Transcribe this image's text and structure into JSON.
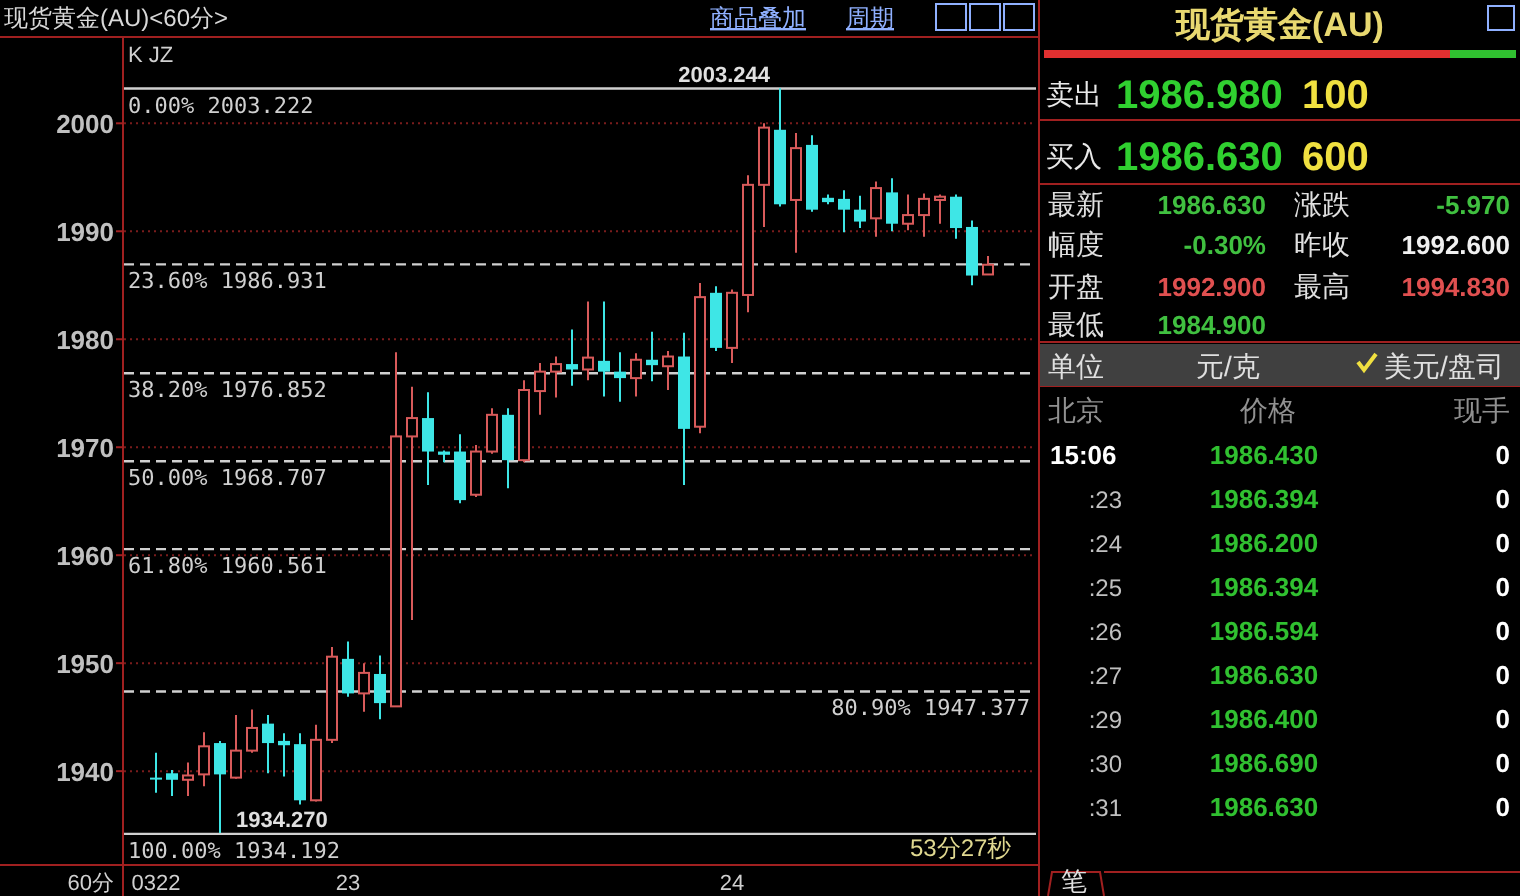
{
  "chart_data": [
    {
      "type": "candlestick",
      "title": "现货黄金(AU)<60分>",
      "xlabel": "60分",
      "categories": [
        "0322",
        null,
        null,
        null,
        null,
        null,
        null,
        null,
        null,
        null,
        null,
        null,
        "23",
        null,
        null,
        null,
        null,
        null,
        null,
        null,
        null,
        null,
        null,
        null,
        null,
        null,
        null,
        null,
        null,
        null,
        null,
        null,
        null,
        null,
        null,
        null,
        "24",
        null,
        null,
        null,
        null,
        null,
        null,
        null,
        null,
        null,
        null,
        null,
        null,
        null,
        null,
        null,
        null
      ],
      "ohlc": [
        [
          1939.4,
          1941.7,
          1938.0,
          1939.3
        ],
        [
          1939.8,
          1940.1,
          1937.7,
          1939.2
        ],
        [
          1939.2,
          1940.8,
          1937.7,
          1939.6
        ],
        [
          1939.7,
          1943.6,
          1938.6,
          1942.3
        ],
        [
          1942.6,
          1942.8,
          1934.27,
          1939.7
        ],
        [
          1939.4,
          1945.2,
          1939.3,
          1941.9
        ],
        [
          1941.9,
          1945.7,
          1941.7,
          1944.0
        ],
        [
          1944.4,
          1945.2,
          1939.8,
          1942.6
        ],
        [
          1942.8,
          1943.5,
          1939.5,
          1942.4
        ],
        [
          1942.5,
          1943.5,
          1936.9,
          1937.3
        ],
        [
          1937.3,
          1944.3,
          1937.2,
          1942.9
        ],
        [
          1942.9,
          1951.5,
          1942.6,
          1950.6
        ],
        [
          1950.4,
          1952.0,
          1946.9,
          1947.2
        ],
        [
          1947.2,
          1950.0,
          1945.5,
          1949.1
        ],
        [
          1949.0,
          1950.7,
          1944.8,
          1946.3
        ],
        [
          1946.0,
          1978.8,
          1946.0,
          1971.0
        ],
        [
          1971.0,
          1975.6,
          1954.0,
          1972.7
        ],
        [
          1972.7,
          1975.1,
          1966.5,
          1969.6
        ],
        [
          1969.6,
          1969.7,
          1968.6,
          1969.3
        ],
        [
          1969.6,
          1971.2,
          1964.8,
          1965.1
        ],
        [
          1965.6,
          1970.2,
          1965.4,
          1969.6
        ],
        [
          1969.6,
          1973.6,
          1969.4,
          1973.0
        ],
        [
          1973.0,
          1973.6,
          1966.2,
          1968.8
        ],
        [
          1968.8,
          1976.2,
          1968.6,
          1975.3
        ],
        [
          1975.2,
          1977.8,
          1973.0,
          1977.0
        ],
        [
          1977.0,
          1978.4,
          1974.6,
          1977.7
        ],
        [
          1977.7,
          1980.9,
          1975.7,
          1977.2
        ],
        [
          1977.2,
          1983.5,
          1976.2,
          1978.3
        ],
        [
          1978.0,
          1983.5,
          1974.7,
          1977.0
        ],
        [
          1977.0,
          1978.8,
          1974.2,
          1976.4
        ],
        [
          1976.4,
          1978.7,
          1974.7,
          1978.1
        ],
        [
          1978.1,
          1980.7,
          1976.1,
          1977.6
        ],
        [
          1977.5,
          1978.9,
          1975.3,
          1978.4
        ],
        [
          1978.4,
          1980.6,
          1966.5,
          1971.7
        ],
        [
          1971.9,
          1985.2,
          1971.3,
          1983.9
        ],
        [
          1984.3,
          1984.9,
          1978.9,
          1979.2
        ],
        [
          1979.2,
          1984.6,
          1977.8,
          1984.3
        ],
        [
          1984.1,
          1995.2,
          1982.5,
          1994.3
        ],
        [
          1994.3,
          2000.0,
          1990.4,
          1999.6
        ],
        [
          1999.4,
          2003.244,
          1992.3,
          1992.5
        ],
        [
          1992.9,
          1999.1,
          1988.0,
          1997.7
        ],
        [
          1998.0,
          1998.9,
          1991.8,
          1992.0
        ],
        [
          1993.1,
          1993.4,
          1992.5,
          1992.7
        ],
        [
          1993.0,
          1993.8,
          1989.9,
          1992.0
        ],
        [
          1992.0,
          1993.3,
          1990.3,
          1990.9
        ],
        [
          1991.2,
          1994.6,
          1989.5,
          1994.0
        ],
        [
          1993.6,
          1994.9,
          1990.0,
          1990.7
        ],
        [
          1990.7,
          1993.4,
          1990.1,
          1991.5
        ],
        [
          1991.5,
          1993.5,
          1989.5,
          1993.0
        ],
        [
          1992.9,
          1993.4,
          1990.7,
          1993.2
        ],
        [
          1993.2,
          1993.4,
          1989.3,
          1990.3
        ],
        [
          1990.4,
          1991.0,
          1985.0,
          1985.9
        ],
        [
          1986.0,
          1987.7,
          1986.0,
          1986.9
        ]
      ],
      "ylim": [
        1931.4,
        2007.9
      ],
      "yticks": [
        1940,
        1950,
        1960,
        1970,
        1980,
        1990,
        2000
      ],
      "grid": "y",
      "ref_lines": [
        {
          "axis": "y",
          "value": 2003.222,
          "label": "0.00% 2003.222",
          "line_style": "solid",
          "color": "#d0d0d0"
        },
        {
          "axis": "y",
          "value": 1986.931,
          "label": "23.60% 1986.931",
          "line_style": "dashed",
          "color": "#d0d0d0"
        },
        {
          "axis": "y",
          "value": 1976.852,
          "label": "38.20% 1976.852",
          "line_style": "dashed",
          "color": "#d0d0d0"
        },
        {
          "axis": "y",
          "value": 1968.707,
          "label": "50.00% 1968.707",
          "line_style": "dashed",
          "color": "#d0d0d0"
        },
        {
          "axis": "y",
          "value": 1960.561,
          "label": "61.80% 1960.561",
          "line_style": "dashed",
          "color": "#d0d0d0"
        },
        {
          "axis": "y",
          "value": 1947.377,
          "label": "80.90% 1947.377",
          "line_style": "dashed",
          "color": "#d0d0d0"
        },
        {
          "axis": "y",
          "value": 1934.192,
          "label": "100.00% 1934.192",
          "line_style": "solid",
          "color": "#d0d0d0"
        }
      ],
      "annotations": [
        {
          "text": "2003.244",
          "y": 2003.244
        },
        {
          "text": "1934.270",
          "y": 1934.27
        },
        "K JZ",
        "商品叠加",
        "周期",
        "53分27秒"
      ]
    },
    {
      "type": "other",
      "title": "现货黄金(AU)",
      "annotations": [
        "卖出",
        "1986.980",
        "100",
        "买入",
        "1986.630",
        "600",
        "最新",
        "1986.630",
        "涨跌",
        "-5.970",
        "幅度",
        "-0.30%",
        "昨收",
        "1992.600",
        "开盘",
        "1992.900",
        "最高",
        "1994.830",
        "最低",
        "1984.900",
        "单位",
        "元/克",
        "美元/盘司",
        "北京",
        "价格",
        "现手",
        "15:06",
        "1986.430",
        "0",
        ":23",
        "1986.394",
        "0",
        ":24",
        "1986.200",
        "0",
        ":25",
        "1986.394",
        "0",
        ":26",
        "1986.594",
        "0",
        ":27",
        "1986.630",
        "0",
        ":29",
        "1986.400",
        "0",
        ":30",
        "1986.690",
        "0",
        ":31",
        "1986.630",
        "0",
        "笔"
      ]
    }
  ]
}
